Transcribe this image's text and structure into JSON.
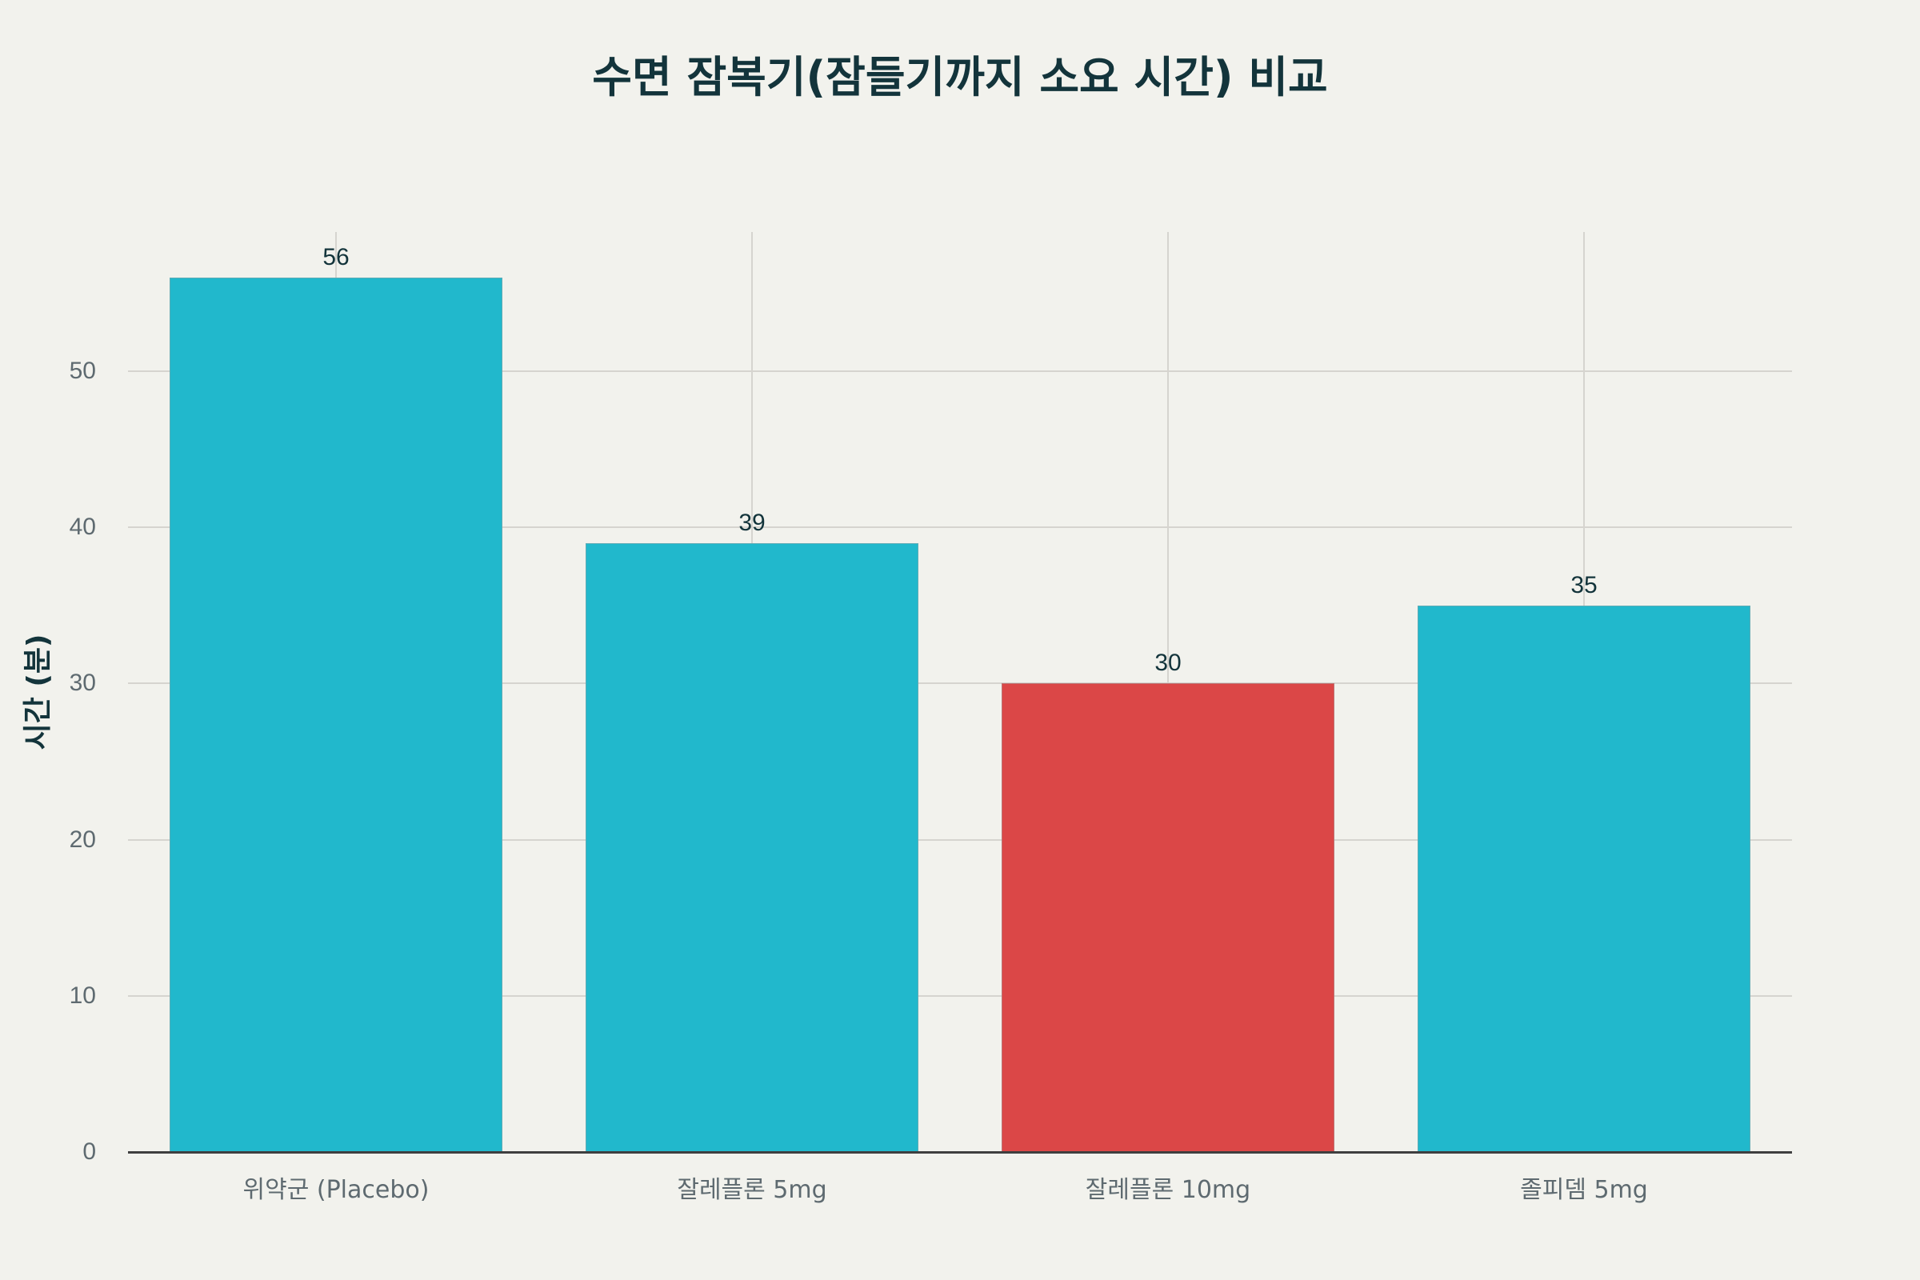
{
  "chart_data": {
    "type": "bar",
    "title": "수면 잠복기(잠들기까지 소요 시간) 비교",
    "xlabel": "",
    "ylabel": "시간 (분)",
    "categories": [
      "위약군 (Placebo)",
      "잘레플론 5mg",
      "잘레플론 10mg",
      "졸피뎀 5mg"
    ],
    "values": [
      56,
      39,
      30,
      35
    ],
    "value_labels": [
      "56",
      "39",
      "30",
      "35"
    ],
    "colors": [
      "#21b8cc",
      "#21b8cc",
      "#db4747",
      "#21b8cc"
    ],
    "highlight_category": "잘레플론 10mg",
    "ylim": [
      0,
      59
    ],
    "yticks": [
      0,
      10,
      20,
      30,
      40,
      50
    ],
    "grid": true,
    "legend": "none"
  },
  "colors": {
    "background": "#f2f2ed",
    "bar_default": "#21b8cc",
    "bar_highlight": "#db4747",
    "title_text": "#13343b",
    "tick_text": "#5e6a70",
    "grid": "#d6d4cf",
    "axis": "#3f3f3f"
  }
}
